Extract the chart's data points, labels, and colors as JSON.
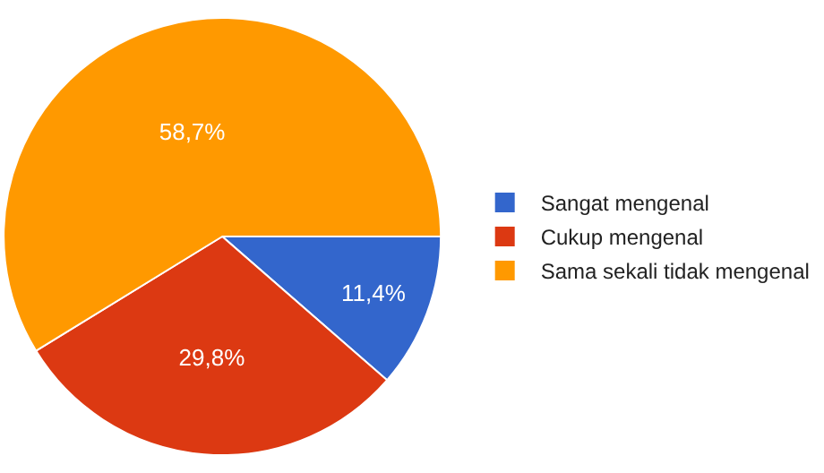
{
  "chart_data": {
    "type": "pie",
    "categories": [
      "Sangat mengenal",
      "Cukup mengenal",
      "Sama sekali tidak mengenal"
    ],
    "values": [
      11.4,
      29.8,
      58.7
    ],
    "value_labels": [
      "11,4%",
      "29,8%",
      "58,7%"
    ],
    "colors": [
      "#3366cc",
      "#dc3912",
      "#ff9900"
    ],
    "legend": "right"
  }
}
